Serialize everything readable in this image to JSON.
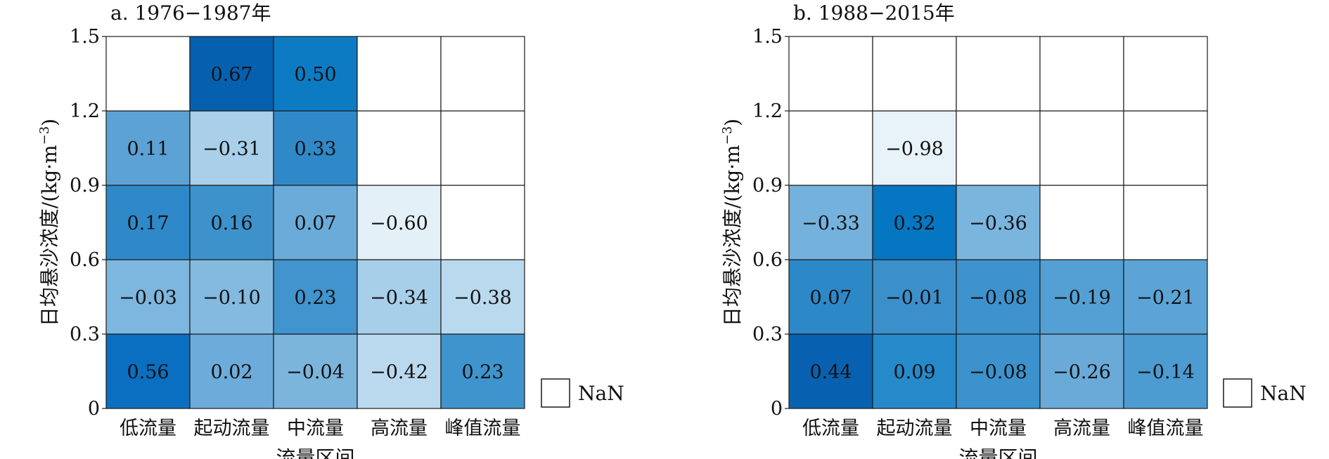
{
  "chart_data": [
    {
      "type": "heatmap",
      "title": "a. 1976−1987年",
      "xlabel": "流量区间",
      "ylabel": "日均悬沙浓度/(kg·m",
      "ylabel_exp": "−3",
      "ylabel_close": ")",
      "categories": [
        "低流量",
        "起动流量",
        "中流量",
        "高流量",
        "峰值流量"
      ],
      "y_ticks": [
        "0",
        "0.3",
        "0.6",
        "0.9",
        "1.2",
        "1.5"
      ],
      "ylim": [
        0,
        1.5
      ],
      "rows_bottom_to_top": [
        [
          0.56,
          0.02,
          -0.04,
          -0.42,
          0.23
        ],
        [
          -0.03,
          -0.1,
          0.23,
          -0.34,
          -0.38
        ],
        [
          0.17,
          0.16,
          0.07,
          -0.6,
          null
        ],
        [
          0.11,
          -0.31,
          0.33,
          null,
          null
        ],
        [
          null,
          0.67,
          0.5,
          null,
          null
        ]
      ],
      "labels_bottom_to_top": [
        [
          "0.56",
          "0.02",
          "−0.04",
          "−0.42",
          "0.23"
        ],
        [
          "−0.03",
          "−0.10",
          "0.23",
          "−0.34",
          "−0.38"
        ],
        [
          "0.17",
          "0.16",
          "0.07",
          "−0.60",
          ""
        ],
        [
          "0.11",
          "−0.31",
          "0.33",
          "",
          ""
        ],
        [
          "",
          "0.67",
          "0.50",
          "",
          ""
        ]
      ],
      "colors_bottom_to_top": [
        [
          "#0a6fc0",
          "#6dacda",
          "#7cb5dc",
          "#bbd9ee",
          "#3f94cd"
        ],
        [
          "#7db6de",
          "#84bae0",
          "#4194cd",
          "#a8cfe9",
          "#b9d9ef"
        ],
        [
          "#2f89c8",
          "#3e92cc",
          "#6aabd9",
          "#e4f0f8",
          "#ffffff"
        ],
        [
          "#5ca2d4",
          "#a9cfe9",
          "#2f89c8",
          "#ffffff",
          "#ffffff"
        ],
        [
          "#ffffff",
          "#0561b0",
          "#0d7bc4",
          "#ffffff",
          "#ffffff"
        ]
      ],
      "legend": {
        "label": "NaN",
        "color": "#ffffff"
      }
    },
    {
      "type": "heatmap",
      "title": "b. 1988−2015年",
      "xlabel": "流量区间",
      "ylabel": "日均悬沙浓度/(kg·m",
      "ylabel_exp": "−3",
      "ylabel_close": ")",
      "categories": [
        "低流量",
        "起动流量",
        "中流量",
        "高流量",
        "峰值流量"
      ],
      "y_ticks": [
        "0",
        "0.3",
        "0.6",
        "0.9",
        "1.2",
        "1.5"
      ],
      "ylim": [
        0,
        1.5
      ],
      "rows_bottom_to_top": [
        [
          0.44,
          0.09,
          -0.08,
          -0.26,
          -0.14
        ],
        [
          0.07,
          -0.01,
          -0.08,
          -0.19,
          -0.21
        ],
        [
          -0.33,
          0.32,
          -0.36,
          null,
          null
        ],
        [
          null,
          -0.98,
          null,
          null,
          null
        ],
        [
          null,
          null,
          null,
          null,
          null
        ]
      ],
      "labels_bottom_to_top": [
        [
          "0.44",
          "0.09",
          "−0.08",
          "−0.26",
          "−0.14"
        ],
        [
          "0.07",
          "−0.01",
          "−0.08",
          "−0.19",
          "−0.21"
        ],
        [
          "−0.33",
          "0.32",
          "−0.36",
          "",
          ""
        ],
        [
          "",
          "−0.98",
          "",
          "",
          ""
        ],
        [
          "",
          "",
          "",
          "",
          ""
        ]
      ],
      "colors_bottom_to_top": [
        [
          "#0861b0",
          "#2689ca",
          "#3b92cd",
          "#6aaad8",
          "#4c9bd1"
        ],
        [
          "#2d88c8",
          "#3b90cc",
          "#3e92cd",
          "#54a0d4",
          "#5ca4d6"
        ],
        [
          "#74b2dd",
          "#0577c2",
          "#7ab5de",
          "#ffffff",
          "#ffffff"
        ],
        [
          "#ffffff",
          "#e8f2f9",
          "#ffffff",
          "#ffffff",
          "#ffffff"
        ],
        [
          "#ffffff",
          "#ffffff",
          "#ffffff",
          "#ffffff",
          "#ffffff"
        ]
      ],
      "legend": {
        "label": "NaN",
        "color": "#ffffff"
      }
    }
  ]
}
